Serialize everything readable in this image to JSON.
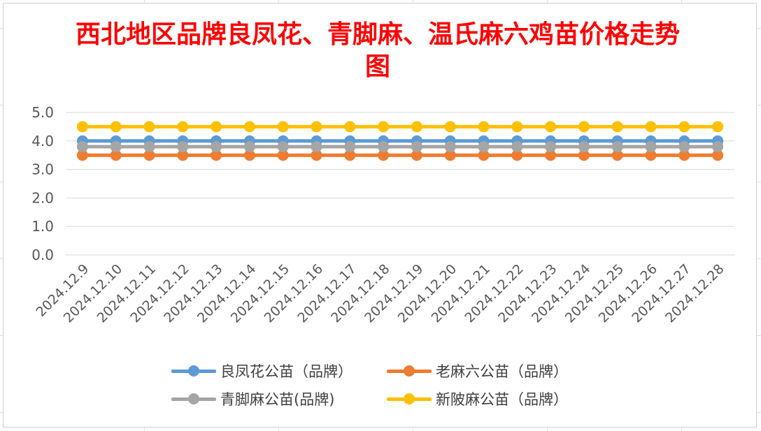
{
  "chart_data": {
    "type": "line",
    "title": "西北地区品牌良凤花、青脚麻、温氏麻六鸡苗价格走势图",
    "title_color": "#ff0000",
    "xlabel": "",
    "ylabel": "",
    "ylim": [
      0,
      5
    ],
    "yticks": [
      "0.0",
      "1.0",
      "2.0",
      "3.0",
      "4.0",
      "5.0"
    ],
    "grid": true,
    "legend_position": "bottom",
    "categories": [
      "2024.12.9",
      "2024.12.10",
      "2024.12.11",
      "2024.12.12",
      "2024.12.13",
      "2024.12.14",
      "2024.12.15",
      "2024.12.16",
      "2024.12.17",
      "2024.12.18",
      "2024.12.19",
      "2024.12.20",
      "2024.12.21",
      "2024.12.22",
      "2024.12.23",
      "2024.12.24",
      "2024.12.25",
      "2024.12.26",
      "2024.12.27",
      "2024.12.28"
    ],
    "series": [
      {
        "name": "良凤花公苗（品牌）",
        "color": "#5b9bd5",
        "values": [
          4.0,
          4.0,
          4.0,
          4.0,
          4.0,
          4.0,
          4.0,
          4.0,
          4.0,
          4.0,
          4.0,
          4.0,
          4.0,
          4.0,
          4.0,
          4.0,
          4.0,
          4.0,
          4.0,
          4.0
        ]
      },
      {
        "name": "老麻六公苗（品牌）",
        "color": "#ed7d31",
        "values": [
          3.5,
          3.5,
          3.5,
          3.5,
          3.5,
          3.5,
          3.5,
          3.5,
          3.5,
          3.5,
          3.5,
          3.5,
          3.5,
          3.5,
          3.5,
          3.5,
          3.5,
          3.5,
          3.5,
          3.5
        ]
      },
      {
        "name": "青脚麻公苗(品牌)",
        "color": "#a5a5a5",
        "values": [
          3.8,
          3.8,
          3.8,
          3.8,
          3.8,
          3.8,
          3.8,
          3.8,
          3.8,
          3.8,
          3.8,
          3.8,
          3.8,
          3.8,
          3.8,
          3.8,
          3.8,
          3.8,
          3.8,
          3.8
        ]
      },
      {
        "name": "新陂麻公苗（品牌）",
        "color": "#ffc000",
        "values": [
          4.5,
          4.5,
          4.5,
          4.5,
          4.5,
          4.5,
          4.5,
          4.5,
          4.5,
          4.5,
          4.5,
          4.5,
          4.5,
          4.5,
          4.5,
          4.5,
          4.5,
          4.5,
          4.5,
          4.5
        ]
      }
    ]
  }
}
